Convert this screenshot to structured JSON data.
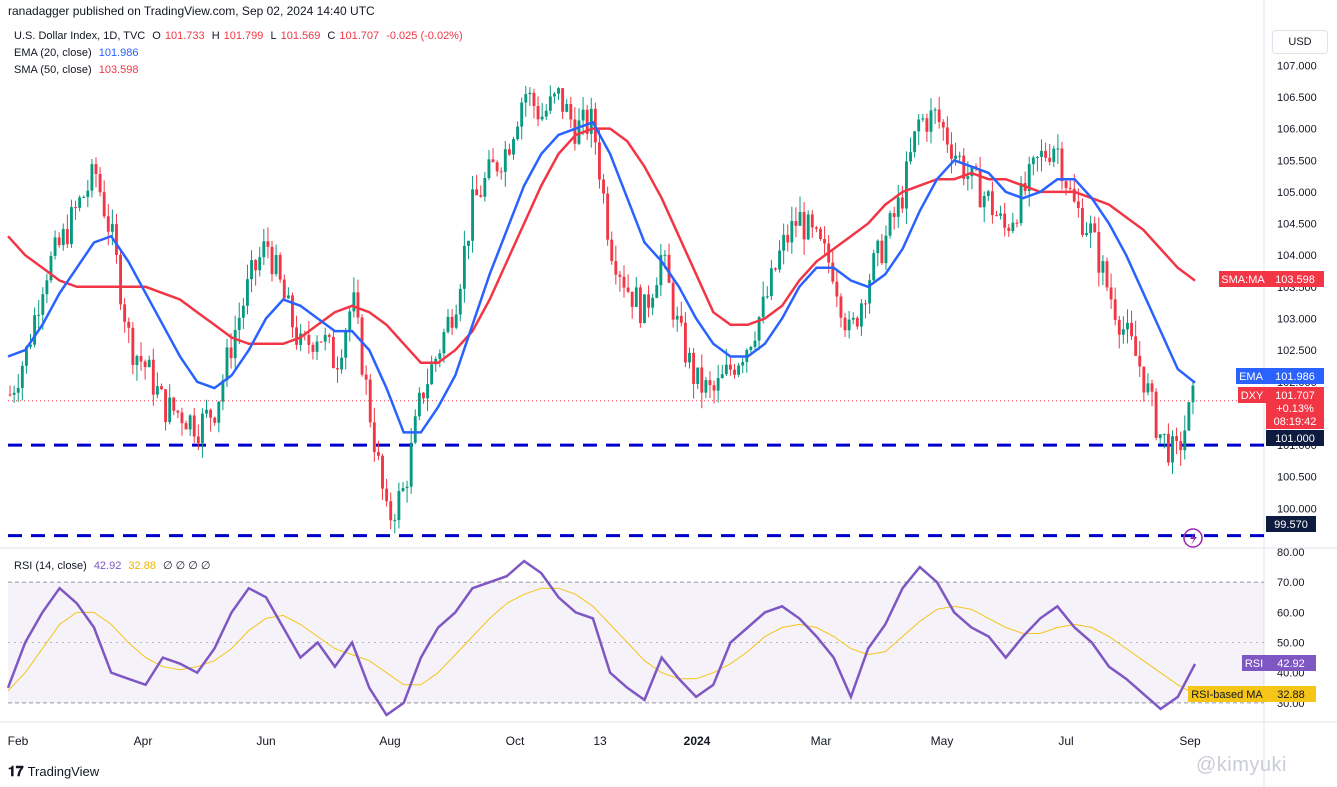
{
  "header": {
    "published_by": "ranadagger published on TradingView.com, Sep 02, 2024 14:40 UTC"
  },
  "legend": {
    "symbol_line": "U.S. Dollar Index, 1D, TVC",
    "o_label": "O",
    "o_value": "101.733",
    "h_label": "H",
    "h_value": "101.799",
    "l_label": "L",
    "l_value": "101.569",
    "c_label": "C",
    "c_value": "101.707",
    "change": "-0.025 (-0.02%)",
    "ema_label": "EMA (20, close)",
    "ema_value": "101.986",
    "sma_label": "SMA (50, close)",
    "sma_value": "103.598",
    "rsi_label": "RSI (14, close)",
    "rsi_value": "42.92",
    "rsi_ma_value": "32.88",
    "extra": "∅ ∅ ∅ ∅"
  },
  "toolbar": {
    "currency": "USD"
  },
  "price_scale": {
    "ticks": [
      107.0,
      106.5,
      106.0,
      105.5,
      105.0,
      104.5,
      104.0,
      103.5,
      103.0,
      102.5,
      102.0,
      101.5,
      101.0,
      100.5,
      100.0
    ],
    "tick_labels": [
      "107.000",
      "106.500",
      "106.000",
      "105.500",
      "105.000",
      "104.500",
      "104.000",
      "103.500",
      "103.000",
      "102.500",
      "102.000",
      "101.500",
      "101.000",
      "100.500",
      "100.000"
    ],
    "badges": {
      "sma_name": "SMA:MA",
      "sma_value": "103.598",
      "ema_name": "EMA",
      "ema_value": "101.986",
      "dxy_name": "DXY",
      "dxy_value": "101.707",
      "dxy_change": "+0.13%",
      "dxy_timer": "08:19:42",
      "level_101": "101.000",
      "level_99": "99.570"
    }
  },
  "rsi_scale": {
    "ticks": [
      80,
      70,
      60,
      50,
      40,
      30
    ],
    "tick_labels": [
      "80.00",
      "70.00",
      "60.00",
      "50.00",
      "40.00",
      "30.00"
    ],
    "badges": {
      "rsi_name": "RSI",
      "rsi_value": "42.92",
      "ma_name": "RSI-based MA",
      "ma_value": "32.88"
    }
  },
  "time_axis": {
    "labels": [
      "Feb",
      "Apr",
      "Jun",
      "Aug",
      "Oct",
      "13",
      "2024",
      "Mar",
      "May",
      "Jul",
      "Sep"
    ]
  },
  "footer": {
    "brand": "TradingView",
    "watermark": "@kimyuki"
  },
  "colors": {
    "up": "#089981",
    "down": "#f23645",
    "ema": "#2962ff",
    "sma": "#f23645",
    "rsi": "#7e57c2",
    "rsi_ma": "#f5c518",
    "level": "#0000cc"
  },
  "chart_data": {
    "type": "line",
    "title": "U.S. Dollar Index, 1D, TVC",
    "x_labels": [
      "Feb",
      "Apr",
      "Jun",
      "Aug",
      "Oct",
      "13",
      "2024",
      "Mar",
      "May",
      "Jul",
      "Sep"
    ],
    "ylim": [
      99.5,
      107.4
    ],
    "horizontal_levels": [
      101.0,
      99.57
    ],
    "series": [
      {
        "name": "DXY",
        "values": [
          101.8,
          102.5,
          103.7,
          104.2,
          104.8,
          105.3,
          104.2,
          102.6,
          102.2,
          101.6,
          101.5,
          101.3,
          101.6,
          102.7,
          103.6,
          104.2,
          103.3,
          102.5,
          102.8,
          102.3,
          103.3,
          101.5,
          99.8,
          100.3,
          101.8,
          102.5,
          103.3,
          104.8,
          105.3,
          105.7,
          106.6,
          106.2,
          106.5,
          106.0,
          106.1,
          104.2,
          103.5,
          103.1,
          104.0,
          102.8,
          102.0,
          101.8,
          102.2,
          102.6,
          103.2,
          104.1,
          104.6,
          104.2,
          103.8,
          102.7,
          103.6,
          104.2,
          104.9,
          106.1,
          106.2,
          105.7,
          105.2,
          104.9,
          104.4,
          104.9,
          105.5,
          105.8,
          104.8,
          104.4,
          103.5,
          102.8,
          102.2,
          101.2,
          100.8,
          101.7
        ]
      },
      {
        "name": "EMA",
        "values": [
          102.4,
          102.5,
          102.9,
          103.4,
          103.8,
          104.2,
          104.3,
          103.9,
          103.4,
          102.9,
          102.4,
          102.0,
          101.9,
          102.1,
          102.5,
          103.0,
          103.3,
          103.2,
          103.0,
          102.8,
          102.8,
          102.5,
          101.9,
          101.2,
          101.2,
          101.6,
          102.1,
          102.9,
          103.7,
          104.4,
          105.1,
          105.6,
          105.9,
          106.0,
          106.1,
          105.6,
          104.9,
          104.2,
          103.9,
          103.5,
          103.0,
          102.6,
          102.4,
          102.4,
          102.6,
          103.0,
          103.5,
          103.8,
          103.8,
          103.6,
          103.5,
          103.7,
          104.1,
          104.7,
          105.2,
          105.5,
          105.4,
          105.3,
          105.0,
          104.9,
          105.0,
          105.2,
          105.2,
          104.9,
          104.5,
          104.0,
          103.4,
          102.8,
          102.2,
          101.986
        ]
      },
      {
        "name": "SMA",
        "values": [
          104.3,
          104.0,
          103.8,
          103.6,
          103.5,
          103.5,
          103.5,
          103.5,
          103.5,
          103.4,
          103.3,
          103.1,
          102.9,
          102.7,
          102.6,
          102.6,
          102.6,
          102.7,
          102.9,
          103.1,
          103.2,
          103.1,
          102.9,
          102.6,
          102.3,
          102.3,
          102.5,
          102.8,
          103.3,
          103.9,
          104.5,
          105.1,
          105.6,
          105.9,
          106.0,
          106.0,
          105.8,
          105.4,
          104.9,
          104.3,
          103.7,
          103.1,
          102.9,
          102.9,
          103.0,
          103.2,
          103.6,
          103.9,
          104.1,
          104.3,
          104.5,
          104.8,
          105.0,
          105.1,
          105.2,
          105.2,
          105.3,
          105.2,
          105.2,
          105.1,
          105.0,
          105.0,
          105.0,
          104.9,
          104.8,
          104.6,
          104.4,
          104.1,
          103.8,
          103.598
        ]
      },
      {
        "name": "RSI",
        "values": [
          35,
          50,
          60,
          68,
          63,
          55,
          40,
          38,
          36,
          45,
          43,
          40,
          48,
          60,
          68,
          65,
          55,
          45,
          50,
          42,
          50,
          35,
          26,
          30,
          45,
          55,
          60,
          68,
          70,
          72,
          77,
          73,
          65,
          60,
          58,
          40,
          35,
          31,
          45,
          38,
          32,
          36,
          50,
          55,
          60,
          62,
          58,
          52,
          45,
          32,
          48,
          56,
          68,
          75,
          70,
          60,
          55,
          52,
          45,
          52,
          58,
          62,
          55,
          50,
          42,
          38,
          33,
          28,
          32,
          42.92
        ]
      },
      {
        "name": "RSI-based MA",
        "values": [
          34,
          40,
          48,
          56,
          60,
          60,
          56,
          50,
          45,
          42,
          41,
          42,
          44,
          48,
          54,
          58,
          59,
          56,
          52,
          48,
          46,
          44,
          40,
          36,
          36,
          40,
          46,
          52,
          58,
          63,
          66,
          68,
          68,
          66,
          62,
          56,
          50,
          44,
          40,
          38,
          38,
          40,
          43,
          47,
          52,
          55,
          56,
          55,
          52,
          48,
          46,
          47,
          52,
          57,
          61,
          62,
          61,
          58,
          55,
          53,
          53,
          55,
          56,
          55,
          52,
          48,
          44,
          40,
          36,
          32.88
        ]
      }
    ],
    "rsi_ylim": [
      25,
      80
    ],
    "rsi_levels": [
      70,
      30
    ]
  }
}
